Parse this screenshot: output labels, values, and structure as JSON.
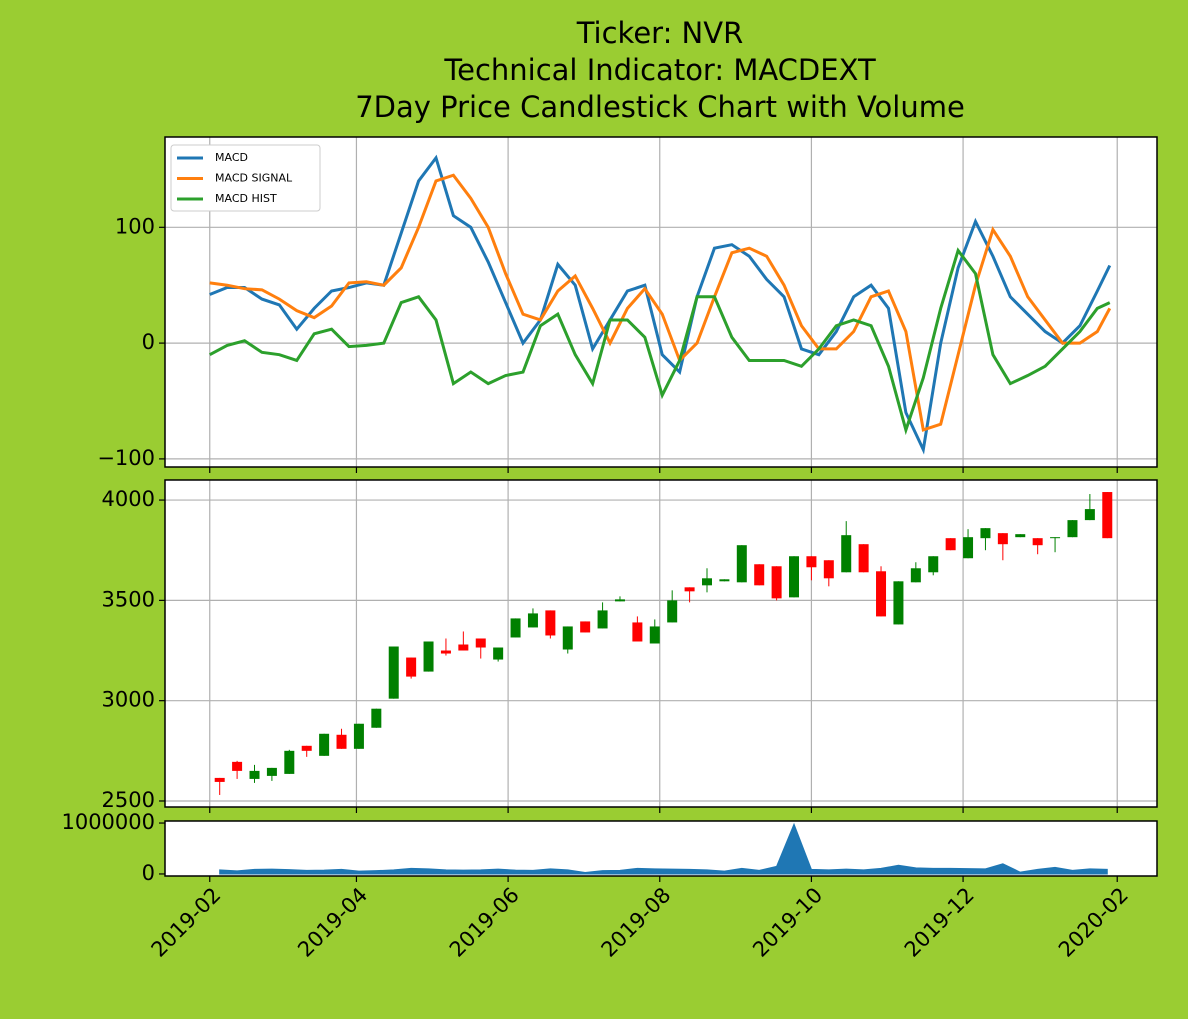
{
  "title": [
    "Ticker: NVR",
    "Technical Indicator: MACDEXT",
    "7Day Price Candlestick Chart with Volume"
  ],
  "chart_data": [
    {
      "type": "line",
      "legend": "upper left",
      "grid": true,
      "ylim": [
        -107,
        178
      ],
      "yticks": [
        {
          "value": -100,
          "label": "−100"
        },
        0,
        100
      ],
      "x": [
        "2019-02-01",
        "2019-02-08",
        "2019-02-15",
        "2019-02-22",
        "2019-03-01",
        "2019-03-08",
        "2019-03-15",
        "2019-03-22",
        "2019-03-29",
        "2019-04-05",
        "2019-04-12",
        "2019-04-19",
        "2019-04-26",
        "2019-05-03",
        "2019-05-10",
        "2019-05-17",
        "2019-05-24",
        "2019-05-31",
        "2019-06-07",
        "2019-06-14",
        "2019-06-21",
        "2019-06-28",
        "2019-07-05",
        "2019-07-12",
        "2019-07-19",
        "2019-07-26",
        "2019-08-02",
        "2019-08-09",
        "2019-08-16",
        "2019-08-23",
        "2019-08-30",
        "2019-09-06",
        "2019-09-13",
        "2019-09-20",
        "2019-09-27",
        "2019-10-04",
        "2019-10-11",
        "2019-10-18",
        "2019-10-25",
        "2019-11-01",
        "2019-11-08",
        "2019-11-15",
        "2019-11-22",
        "2019-11-29",
        "2019-12-06",
        "2019-12-13",
        "2019-12-20",
        "2019-12-27",
        "2020-01-03",
        "2020-01-10",
        "2020-01-17",
        "2020-01-24",
        "2020-01-29"
      ],
      "series": [
        {
          "name": "MACD",
          "color": "#1f77b4",
          "values": [
            42,
            48,
            48,
            38,
            33,
            12,
            30,
            45,
            48,
            52,
            50,
            95,
            140,
            160,
            110,
            100,
            70,
            35,
            0,
            20,
            68,
            50,
            -5,
            20,
            45,
            50,
            -10,
            -25,
            40,
            82,
            85,
            75,
            55,
            40,
            -5,
            -10,
            10,
            40,
            50,
            30,
            -60,
            -92,
            0,
            65,
            105,
            75,
            40,
            25,
            10,
            0,
            15,
            45,
            67
          ]
        },
        {
          "name": "MACD SIGNAL",
          "color": "#ff7f0e",
          "values": [
            52,
            50,
            47,
            46,
            38,
            28,
            22,
            32,
            52,
            53,
            50,
            65,
            100,
            140,
            145,
            125,
            100,
            60,
            25,
            20,
            45,
            58,
            30,
            0,
            30,
            47,
            25,
            -15,
            0,
            40,
            78,
            82,
            75,
            50,
            15,
            -5,
            -5,
            10,
            40,
            45,
            10,
            -75,
            -70,
            -10,
            50,
            98,
            75,
            40,
            20,
            0,
            0,
            10,
            30
          ]
        },
        {
          "name": "MACD HIST",
          "color": "#2ca02c",
          "values": [
            -10,
            -2,
            2,
            -8,
            -10,
            -15,
            8,
            12,
            -3,
            -2,
            0,
            35,
            40,
            20,
            -35,
            -25,
            -35,
            -28,
            -25,
            15,
            25,
            -10,
            -35,
            20,
            20,
            5,
            -45,
            -15,
            40,
            40,
            5,
            -15,
            -15,
            -15,
            -20,
            -5,
            15,
            20,
            15,
            -20,
            -75,
            -30,
            30,
            80,
            60,
            -10,
            -35,
            -28,
            -20,
            -5,
            10,
            30,
            35
          ]
        }
      ]
    },
    {
      "type": "candlestick",
      "grid": true,
      "up_color": "#008000",
      "down_color": "#ff0000",
      "ylim": [
        2470,
        4100
      ],
      "yticks": [
        2500,
        3000,
        3500,
        4000
      ],
      "x": [
        "2019-02-05",
        "2019-02-12",
        "2019-02-19",
        "2019-02-26",
        "2019-03-05",
        "2019-03-12",
        "2019-03-19",
        "2019-03-26",
        "2019-04-02",
        "2019-04-09",
        "2019-04-16",
        "2019-04-23",
        "2019-04-30",
        "2019-05-07",
        "2019-05-14",
        "2019-05-21",
        "2019-05-28",
        "2019-06-04",
        "2019-06-11",
        "2019-06-18",
        "2019-06-25",
        "2019-07-02",
        "2019-07-09",
        "2019-07-16",
        "2019-07-23",
        "2019-07-30",
        "2019-08-06",
        "2019-08-13",
        "2019-08-20",
        "2019-08-27",
        "2019-09-03",
        "2019-09-10",
        "2019-09-17",
        "2019-09-24",
        "2019-10-01",
        "2019-10-08",
        "2019-10-15",
        "2019-10-22",
        "2019-10-29",
        "2019-11-05",
        "2019-11-12",
        "2019-11-19",
        "2019-11-26",
        "2019-12-03",
        "2019-12-10",
        "2019-12-17",
        "2019-12-24",
        "2019-12-31",
        "2020-01-07",
        "2020-01-14",
        "2020-01-21",
        "2020-01-28"
      ],
      "open": [
        2615,
        2695,
        2610,
        2625,
        2635,
        2775,
        2725,
        2830,
        2760,
        2865,
        3010,
        3215,
        3145,
        3250,
        3280,
        3310,
        3205,
        3315,
        3365,
        3450,
        3255,
        3395,
        3360,
        3495,
        3390,
        3285,
        3390,
        3565,
        3575,
        3595,
        3590,
        3680,
        3670,
        3515,
        3720,
        3700,
        3640,
        3780,
        3645,
        3380,
        3590,
        3640,
        3810,
        3710,
        3810,
        3835,
        3815,
        3810,
        3810,
        3815,
        3900,
        4040
      ],
      "high": [
        2615,
        2700,
        2680,
        2665,
        2755,
        2775,
        2835,
        2860,
        2885,
        2960,
        3270,
        3215,
        3295,
        3310,
        3345,
        3310,
        3265,
        3410,
        3460,
        3450,
        3370,
        3395,
        3490,
        3520,
        3420,
        3405,
        3550,
        3565,
        3660,
        3605,
        3775,
        3680,
        3670,
        3720,
        3720,
        3700,
        3895,
        3780,
        3670,
        3595,
        3690,
        3720,
        3810,
        3855,
        3860,
        3835,
        3830,
        3810,
        3815,
        3900,
        4030,
        4040
      ],
      "low": [
        2530,
        2610,
        2590,
        2600,
        2635,
        2720,
        2725,
        2760,
        2760,
        2865,
        3010,
        3110,
        3145,
        3225,
        3250,
        3210,
        3195,
        3315,
        3365,
        3310,
        3235,
        3340,
        3360,
        3495,
        3295,
        3285,
        3390,
        3490,
        3540,
        3595,
        3590,
        3575,
        3500,
        3515,
        3600,
        3570,
        3640,
        3640,
        3420,
        3380,
        3590,
        3625,
        3750,
        3710,
        3750,
        3700,
        3815,
        3730,
        3740,
        3815,
        3900,
        3810
      ],
      "close": [
        2595,
        2650,
        2650,
        2665,
        2750,
        2750,
        2835,
        2760,
        2885,
        2960,
        3270,
        3120,
        3295,
        3235,
        3250,
        3265,
        3265,
        3410,
        3435,
        3325,
        3370,
        3340,
        3450,
        3505,
        3295,
        3370,
        3500,
        3545,
        3610,
        3605,
        3775,
        3575,
        3510,
        3720,
        3665,
        3610,
        3825,
        3640,
        3420,
        3595,
        3660,
        3720,
        3750,
        3815,
        3860,
        3780,
        3830,
        3775,
        3815,
        3900,
        3955,
        3810
      ]
    },
    {
      "type": "area",
      "grid": false,
      "color": "#1f77b4",
      "ylim": [
        -40000,
        1040000
      ],
      "yticks": [
        0,
        1000000
      ],
      "xlim": [
        "2019-01-14",
        "2020-02-17"
      ],
      "xticks": [
        {
          "value": "2019-02-01",
          "label": "2019-02"
        },
        {
          "value": "2019-04-01",
          "label": "2019-04"
        },
        {
          "value": "2019-06-01",
          "label": "2019-06"
        },
        {
          "value": "2019-08-01",
          "label": "2019-08"
        },
        {
          "value": "2019-10-01",
          "label": "2019-10"
        },
        {
          "value": "2019-12-01",
          "label": "2019-12"
        },
        {
          "value": "2020-02-01",
          "label": "2020-02"
        }
      ],
      "values": [
        80000,
        60000,
        90000,
        95000,
        85000,
        70000,
        75000,
        90000,
        55000,
        65000,
        80000,
        110000,
        100000,
        80000,
        75000,
        80000,
        95000,
        75000,
        70000,
        100000,
        80000,
        30000,
        65000,
        70000,
        110000,
        100000,
        95000,
        90000,
        80000,
        55000,
        110000,
        70000,
        150000,
        980000,
        90000,
        80000,
        95000,
        80000,
        110000,
        170000,
        120000,
        110000,
        110000,
        105000,
        100000,
        200000,
        35000,
        90000,
        130000,
        70000,
        100000,
        90000
      ]
    }
  ]
}
